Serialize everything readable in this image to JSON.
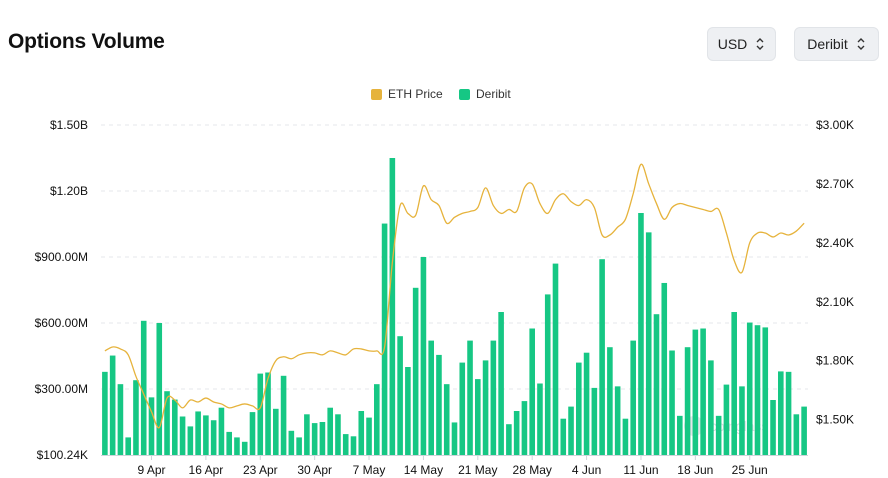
{
  "header": {
    "title": "Options Volume",
    "currency_select": {
      "value": "USD"
    },
    "exchange_select": {
      "value": "Deribit"
    }
  },
  "watermark": "coinglass",
  "colors": {
    "bar": "#16c784",
    "price_line": "#e6b33c",
    "grid": "#e5e7eb"
  },
  "chart_data": {
    "type": "bar",
    "title": "",
    "legend": {
      "position": "top-center",
      "entries": [
        "ETH Price",
        "Deribit"
      ]
    },
    "x_tick_labels": [
      "9 Apr",
      "16 Apr",
      "23 Apr",
      "30 Apr",
      "7 May",
      "14 May",
      "21 May",
      "28 May",
      "4 Jun",
      "11 Jun",
      "18 Jun",
      "25 Jun"
    ],
    "x_tick_day_index": [
      6,
      13,
      20,
      27,
      34,
      41,
      48,
      55,
      62,
      69,
      76,
      83
    ],
    "y_left": {
      "tick_labels": [
        "$100.24K",
        "$300.00M",
        "$600.00M",
        "$900.00M",
        "$1.20B",
        "$1.50B"
      ],
      "tick_values": [
        0,
        300000000,
        600000000,
        900000000,
        1200000000,
        1500000000
      ],
      "range": [
        0,
        1500000000
      ]
    },
    "y_right": {
      "tick_labels": [
        "$1.50K",
        "$1.80K",
        "$2.10K",
        "$2.40K",
        "$2.70K",
        "$3.00K"
      ],
      "tick_values": [
        1500,
        1800,
        2100,
        2400,
        2700,
        3000
      ],
      "range": [
        1320,
        3000
      ]
    },
    "grid": true,
    "series": [
      {
        "name": "Deribit",
        "type": "bar",
        "axis": "left",
        "values": [
          378000000,
          452000000,
          322000000,
          80000000,
          340000000,
          610000000,
          262000000,
          600000000,
          290000000,
          252000000,
          175000000,
          130000000,
          198000000,
          180000000,
          158000000,
          215000000,
          105000000,
          80000000,
          60000000,
          195000000,
          370000000,
          375000000,
          210000000,
          360000000,
          110000000,
          80000000,
          185000000,
          145000000,
          150000000,
          215000000,
          185000000,
          95000000,
          85000000,
          200000000,
          170000000,
          322000000,
          1052000000,
          1350000000,
          540000000,
          400000000,
          760000000,
          900000000,
          520000000,
          455000000,
          322000000,
          148000000,
          420000000,
          520000000,
          345000000,
          430000000,
          520000000,
          650000000,
          140000000,
          200000000,
          245000000,
          575000000,
          325000000,
          730000000,
          870000000,
          165000000,
          220000000,
          420000000,
          465000000,
          305000000,
          890000000,
          490000000,
          312000000,
          165000000,
          520000000,
          1100000000,
          1012000000,
          640000000,
          782000000,
          475000000,
          178000000,
          490000000,
          570000000,
          575000000,
          430000000,
          178000000,
          320000000,
          650000000,
          312000000,
          602000000,
          590000000,
          580000000,
          250000000,
          380000000,
          378000000,
          185000000,
          220000000
        ]
      },
      {
        "name": "ETH Price",
        "type": "line",
        "axis": "right",
        "values": [
          1850,
          1870,
          1860,
          1830,
          1720,
          1630,
          1540,
          1460,
          1610,
          1600,
          1560,
          1600,
          1590,
          1610,
          1590,
          1580,
          1560,
          1570,
          1580,
          1570,
          1560,
          1710,
          1800,
          1820,
          1810,
          1830,
          1840,
          1840,
          1830,
          1850,
          1840,
          1830,
          1860,
          1860,
          1850,
          1850,
          1870,
          2300,
          2590,
          2550,
          2540,
          2690,
          2620,
          2590,
          2500,
          2530,
          2550,
          2560,
          2580,
          2680,
          2590,
          2550,
          2570,
          2560,
          2680,
          2700,
          2600,
          2550,
          2620,
          2650,
          2610,
          2590,
          2620,
          2580,
          2440,
          2440,
          2480,
          2520,
          2650,
          2800,
          2700,
          2600,
          2520,
          2580,
          2600,
          2590,
          2580,
          2570,
          2560,
          2570,
          2450,
          2310,
          2250,
          2400,
          2450,
          2450,
          2430,
          2450,
          2440,
          2460,
          2500
        ]
      }
    ]
  }
}
